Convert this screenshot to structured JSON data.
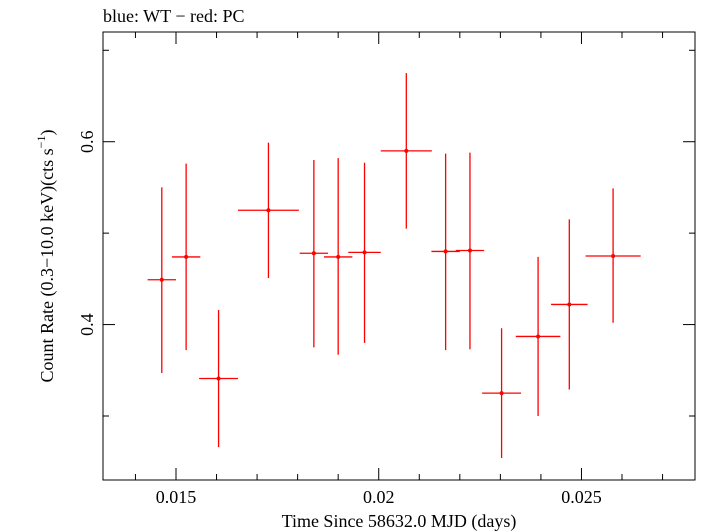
{
  "chart_data": {
    "type": "scatter",
    "title": "blue: WT − red: PC",
    "xlabel": "Time Since 58632.0 MJD (days)",
    "ylabel_main": "Count Rate (0.3−10.0 keV)(cts s",
    "ylabel_sup": "−1",
    "ylabel_end": ")",
    "xlim": [
      0.0132,
      0.0278
    ],
    "ylim": [
      0.23,
      0.72
    ],
    "x_ticks_major": [
      0.015,
      0.02,
      0.025
    ],
    "x_tick_labels": [
      "0.015",
      "0.02",
      "0.025"
    ],
    "y_ticks_major": [
      0.4,
      0.6
    ],
    "y_tick_labels": [
      "0.4",
      "0.6"
    ],
    "x_ticks_minor": [
      0.014,
      0.016,
      0.017,
      0.018,
      0.019,
      0.021,
      0.022,
      0.023,
      0.024,
      0.026,
      0.027
    ],
    "y_ticks_minor": [
      0.3,
      0.5,
      0.7
    ],
    "series": [
      {
        "name": "PC",
        "color": "#ff0000",
        "points": [
          {
            "x": 0.01465,
            "xerr": 0.00035,
            "y": 0.449,
            "yerr_lo": 0.102,
            "yerr_hi": 0.101
          },
          {
            "x": 0.01525,
            "xerr": 0.00035,
            "y": 0.474,
            "yerr_lo": 0.102,
            "yerr_hi": 0.102
          },
          {
            "x": 0.01605,
            "xerr": 0.00048,
            "y": 0.341,
            "yerr_lo": 0.075,
            "yerr_hi": 0.075
          },
          {
            "x": 0.01728,
            "xerr": 0.00075,
            "y": 0.525,
            "yerr_lo": 0.074,
            "yerr_hi": 0.074
          },
          {
            "x": 0.0184,
            "xerr": 0.00035,
            "y": 0.478,
            "yerr_lo": 0.103,
            "yerr_hi": 0.102
          },
          {
            "x": 0.019,
            "xerr": 0.00035,
            "y": 0.474,
            "yerr_lo": 0.107,
            "yerr_hi": 0.108
          },
          {
            "x": 0.01965,
            "xerr": 0.0004,
            "y": 0.479,
            "yerr_lo": 0.099,
            "yerr_hi": 0.098
          },
          {
            "x": 0.02068,
            "xerr": 0.00063,
            "y": 0.59,
            "yerr_lo": 0.085,
            "yerr_hi": 0.085
          },
          {
            "x": 0.02165,
            "xerr": 0.00035,
            "y": 0.48,
            "yerr_lo": 0.108,
            "yerr_hi": 0.107
          },
          {
            "x": 0.02225,
            "xerr": 0.00035,
            "y": 0.481,
            "yerr_lo": 0.108,
            "yerr_hi": 0.107
          },
          {
            "x": 0.02303,
            "xerr": 0.00048,
            "y": 0.325,
            "yerr_lo": 0.071,
            "yerr_hi": 0.071
          },
          {
            "x": 0.02393,
            "xerr": 0.00055,
            "y": 0.387,
            "yerr_lo": 0.087,
            "yerr_hi": 0.087
          },
          {
            "x": 0.0247,
            "xerr": 0.00045,
            "y": 0.422,
            "yerr_lo": 0.093,
            "yerr_hi": 0.093
          },
          {
            "x": 0.02578,
            "xerr": 0.00068,
            "y": 0.475,
            "yerr_lo": 0.073,
            "yerr_hi": 0.074
          }
        ]
      }
    ]
  }
}
